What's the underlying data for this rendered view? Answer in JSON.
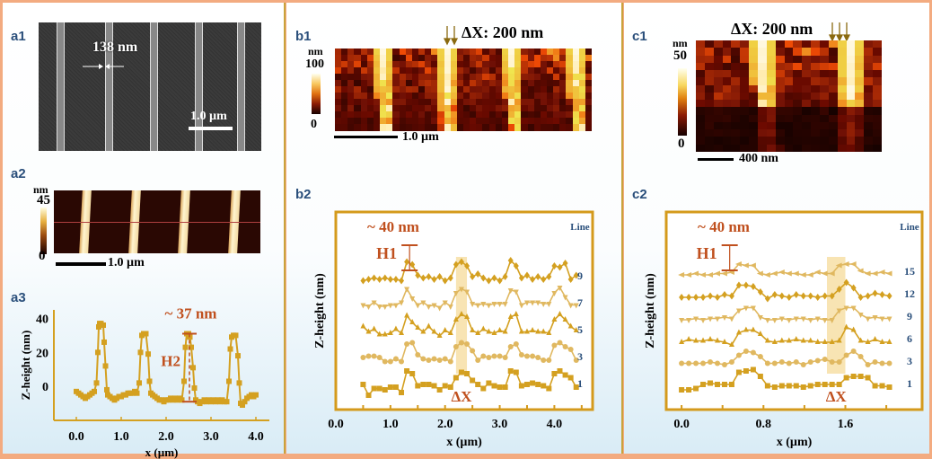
{
  "panels": {
    "a1": {
      "label": "a1",
      "width_annotation": "138 nm",
      "scale_bar": "1.0 µm",
      "image_type": "SEM micrograph of line grating"
    },
    "a2": {
      "label": "a2",
      "colorbar_unit": "nm",
      "colorbar_max": "45",
      "colorbar_min": "0",
      "scale_bar": "1.0 µm",
      "image_type": "AFM height map"
    },
    "a3": {
      "label": "a3",
      "annotation_height": "~ 37 nm",
      "annotation_label": "H2"
    },
    "b1": {
      "label": "b1",
      "delta_label": "ΔX: 200 nm",
      "colorbar_unit": "nm",
      "colorbar_max": "100",
      "colorbar_min": "0",
      "scale_bar": "1.0 µm"
    },
    "b2": {
      "label": "b2",
      "annotation_height": "~ 40 nm",
      "annotation_label": "H1",
      "delta_marker": "ΔX",
      "line_header": "Line"
    },
    "c1": {
      "label": "c1",
      "delta_label": "ΔX: 200 nm",
      "colorbar_unit": "nm",
      "colorbar_max": "50",
      "colorbar_min": "0",
      "scale_bar": "400 nm"
    },
    "c2": {
      "label": "c2",
      "annotation_height": "~ 40 nm",
      "annotation_label": "H1",
      "delta_marker": "ΔX",
      "line_header": "Line"
    }
  },
  "colors": {
    "series": "#d4a020",
    "series_light": "#e0b860",
    "annotation": "#c0501e",
    "line_label": "#2a4f7b",
    "delta_title": "#8a6a10",
    "highlight": "#f7dfa6"
  },
  "chart_data": [
    {
      "id": "a3",
      "type": "line",
      "title": "",
      "xlabel": "x (µm)",
      "ylabel": "Z-height (nm)",
      "xlim": [
        -0.5,
        4.3
      ],
      "ylim": [
        -20,
        45
      ],
      "xticks": [
        "0.0",
        "1.0",
        "2.0",
        "3.0",
        "4.0"
      ],
      "xtick_values": [
        0,
        1,
        2,
        3,
        4
      ],
      "yticks": [
        "0",
        "20",
        "40"
      ],
      "ytick_values": [
        0,
        20,
        40
      ],
      "series": [
        {
          "name": "profile",
          "x": [
            0.0,
            0.05,
            0.1,
            0.15,
            0.2,
            0.25,
            0.3,
            0.35,
            0.4,
            0.45,
            0.48,
            0.5,
            0.52,
            0.55,
            0.6,
            0.62,
            0.65,
            0.68,
            0.7,
            0.75,
            0.8,
            0.85,
            0.9,
            0.95,
            1.0,
            1.05,
            1.1,
            1.15,
            1.2,
            1.25,
            1.3,
            1.35,
            1.4,
            1.43,
            1.46,
            1.5,
            1.55,
            1.6,
            1.63,
            1.66,
            1.7,
            1.75,
            1.8,
            1.85,
            1.9,
            1.95,
            2.0,
            2.05,
            2.1,
            2.15,
            2.2,
            2.25,
            2.3,
            2.35,
            2.4,
            2.43,
            2.46,
            2.5,
            2.53,
            2.56,
            2.6,
            2.63,
            2.66,
            2.7,
            2.75,
            2.8,
            2.85,
            2.9,
            2.95,
            3.0,
            3.05,
            3.1,
            3.15,
            3.2,
            3.25,
            3.3,
            3.35,
            3.4,
            3.43,
            3.46,
            3.5,
            3.55,
            3.6,
            3.63,
            3.66,
            3.7,
            3.75,
            3.8,
            3.85,
            3.9,
            3.95,
            4.0
          ],
          "y": [
            -3,
            -4,
            -5,
            -6,
            -7,
            -6,
            -5,
            -4,
            -3,
            2,
            20,
            35,
            37,
            37,
            36,
            26,
            12,
            -2,
            -5,
            -6,
            -7,
            -8,
            -7,
            -6,
            -6,
            -5,
            -5,
            -4,
            -4,
            -4,
            -3,
            -4,
            2,
            20,
            30,
            31,
            31,
            19,
            3,
            -4,
            -5,
            -6,
            -7,
            -8,
            -8,
            -9,
            -8,
            -8,
            -7,
            -8,
            -7,
            -8,
            -7,
            -8,
            3,
            23,
            31,
            31,
            29,
            23,
            11,
            -1,
            -8,
            -9,
            -10,
            -9,
            -8,
            -9,
            -8,
            -9,
            -8,
            -9,
            -8,
            -9,
            -8,
            -9,
            -9,
            3,
            22,
            29,
            30,
            30,
            18,
            2,
            -10,
            -11,
            -9,
            -7,
            -6,
            -5,
            -6,
            -5
          ]
        }
      ],
      "annotations": [
        {
          "text": "~ 37 nm",
          "x": 2.55,
          "y": 42
        },
        {
          "text": "H2",
          "x": 2.3,
          "y": 13
        }
      ]
    },
    {
      "id": "b2",
      "type": "line",
      "xlabel": "x (µm)",
      "ylabel": "Z-height (nm)",
      "xlim": [
        0,
        4.7
      ],
      "xticks": [
        "0.0",
        "1.0",
        "2.0",
        "3.0",
        "4.0"
      ],
      "xtick_values": [
        0,
        1,
        2,
        3,
        4
      ],
      "legend_title": "Line",
      "highlight_x": [
        2.2,
        2.4
      ],
      "x": [
        0.5,
        0.6,
        0.7,
        0.8,
        0.9,
        1.0,
        1.1,
        1.2,
        1.3,
        1.4,
        1.5,
        1.6,
        1.7,
        1.8,
        1.9,
        2.0,
        2.1,
        2.2,
        2.3,
        2.4,
        2.5,
        2.6,
        2.7,
        2.8,
        2.9,
        3.0,
        3.1,
        3.2,
        3.3,
        3.4,
        3.5,
        3.6,
        3.7,
        3.8,
        3.9,
        4.0,
        4.1,
        4.2,
        4.3,
        4.4
      ],
      "series": [
        {
          "name": "1",
          "marker": "square",
          "offset": 0,
          "values": [
            4,
            -4,
            1,
            1,
            0,
            2,
            2,
            -2,
            14,
            12,
            3,
            4,
            4,
            3,
            0,
            3,
            2,
            9,
            13,
            12,
            7,
            4,
            1,
            5,
            3,
            2,
            2,
            14,
            13,
            3,
            4,
            5,
            4,
            3,
            1,
            12,
            14,
            11,
            9,
            2
          ]
        },
        {
          "name": "3",
          "marker": "circle",
          "offset": 1,
          "values": [
            4,
            5,
            5,
            4,
            1,
            1,
            3,
            1,
            14,
            15,
            6,
            3,
            2,
            3,
            2,
            3,
            1,
            12,
            15,
            14,
            9,
            2,
            5,
            4,
            5,
            5,
            4,
            12,
            14,
            6,
            5,
            5,
            4,
            2,
            2,
            13,
            15,
            12,
            10,
            2
          ]
        },
        {
          "name": "5",
          "marker": "triangle-up",
          "offset": 2,
          "values": [
            7,
            3,
            5,
            1,
            1,
            2,
            5,
            2,
            15,
            10,
            6,
            3,
            7,
            3,
            0,
            4,
            2,
            12,
            16,
            14,
            4,
            2,
            5,
            3,
            2,
            4,
            3,
            14,
            16,
            3,
            3,
            4,
            3,
            3,
            2,
            12,
            16,
            12,
            7,
            4
          ]
        },
        {
          "name": "7",
          "marker": "triangle-down",
          "offset": 3,
          "values": [
            3,
            2,
            5,
            2,
            2,
            3,
            3,
            5,
            15,
            8,
            3,
            5,
            2,
            3,
            1,
            5,
            2,
            12,
            15,
            13,
            4,
            3,
            4,
            3,
            4,
            4,
            4,
            14,
            13,
            3,
            5,
            5,
            5,
            4,
            4,
            12,
            16,
            9,
            3,
            3
          ]
        },
        {
          "name": "9",
          "marker": "diamond",
          "offset": 4,
          "values": [
            1,
            2,
            3,
            2,
            3,
            2,
            2,
            1,
            15,
            13,
            5,
            3,
            4,
            2,
            4,
            1,
            3,
            13,
            15,
            12,
            4,
            6,
            3,
            1,
            3,
            1,
            4,
            16,
            12,
            3,
            5,
            2,
            4,
            2,
            4,
            12,
            11,
            14,
            2,
            5
          ]
        }
      ],
      "annotations": [
        {
          "text": "~ 40 nm"
        },
        {
          "text": "H1"
        },
        {
          "text": "ΔX"
        }
      ]
    },
    {
      "id": "c2",
      "type": "line",
      "xlabel": "x (µm)",
      "ylabel": "Z-height (nm)",
      "xlim": [
        -0.15,
        2.35
      ],
      "xticks": [
        "0.0",
        "0.8",
        "1.6"
      ],
      "xtick_values": [
        0,
        0.8,
        1.6
      ],
      "legend_title": "Line",
      "highlight_x": [
        1.42,
        1.6
      ],
      "x": [
        0.0,
        0.07,
        0.14,
        0.21,
        0.28,
        0.35,
        0.42,
        0.49,
        0.56,
        0.63,
        0.7,
        0.77,
        0.84,
        0.91,
        0.98,
        1.05,
        1.12,
        1.19,
        1.26,
        1.33,
        1.4,
        1.47,
        1.54,
        1.61,
        1.68,
        1.75,
        1.82,
        1.89,
        1.96,
        2.03
      ],
      "series": [
        {
          "name": "1",
          "marker": "square",
          "offset": 0,
          "values": [
            0,
            0,
            1,
            4,
            5,
            4,
            4,
            4,
            13,
            14,
            15,
            10,
            3,
            2,
            3,
            3,
            3,
            2,
            3,
            4,
            4,
            4,
            4,
            9,
            10,
            10,
            9,
            3,
            3,
            2
          ]
        },
        {
          "name": "3",
          "marker": "circle",
          "offset": 1,
          "values": [
            3,
            3,
            3,
            3,
            4,
            3,
            2,
            4,
            9,
            12,
            11,
            8,
            3,
            3,
            4,
            3,
            4,
            2,
            4,
            5,
            6,
            4,
            4,
            9,
            12,
            8,
            2,
            4,
            3,
            3
          ]
        },
        {
          "name": "6",
          "marker": "triangle-up",
          "offset": 2,
          "values": [
            2,
            4,
            3,
            3,
            4,
            3,
            2,
            0,
            9,
            11,
            11,
            8,
            3,
            2,
            3,
            3,
            4,
            3,
            3,
            2,
            2,
            2,
            3,
            13,
            11,
            3,
            2,
            4,
            2,
            2
          ]
        },
        {
          "name": "9",
          "marker": "triangle-down",
          "offset": 3,
          "values": [
            2,
            2,
            3,
            2,
            3,
            3,
            4,
            3,
            9,
            11,
            11,
            4,
            2,
            2,
            3,
            2,
            3,
            3,
            2,
            3,
            2,
            2,
            9,
            11,
            11,
            6,
            3,
            4,
            3,
            3
          ]
        },
        {
          "name": "12",
          "marker": "diamond",
          "offset": 4,
          "values": [
            2,
            2,
            2,
            2,
            3,
            2,
            4,
            3,
            11,
            11,
            10,
            6,
            1,
            4,
            3,
            2,
            4,
            3,
            3,
            2,
            3,
            3,
            8,
            13,
            9,
            2,
            3,
            5,
            4,
            3
          ]
        },
        {
          "name": "15",
          "marker": "triangle-left",
          "offset": 5,
          "values": [
            2,
            2,
            3,
            2,
            2,
            3,
            3,
            4,
            10,
            9,
            9,
            3,
            2,
            3,
            4,
            3,
            3,
            2,
            2,
            4,
            3,
            3,
            9,
            10,
            10,
            5,
            3,
            3,
            4,
            3
          ]
        }
      ],
      "annotations": [
        {
          "text": "~ 40 nm"
        },
        {
          "text": "H1"
        },
        {
          "text": "ΔX"
        }
      ]
    }
  ]
}
